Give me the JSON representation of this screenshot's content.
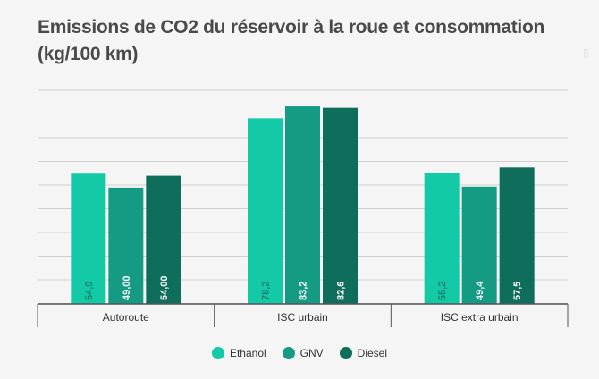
{
  "header": {
    "title_line1": "Emissions de CO2 du réservoir à la roue et consommation",
    "title_line2": "(kg/100 km)"
  },
  "colors": {
    "Ethanol": "#13c9a6",
    "GNV": "#159b84",
    "Diesel": "#0f6e5b",
    "grid": "#cfcfcf",
    "axis": "#555555"
  },
  "chart_data": {
    "type": "bar",
    "title": "Emissions de CO2 du réservoir à la roue et consommation (kg/100 km)",
    "categories": [
      "Autoroute",
      "ISC urbain",
      "ISC extra urbain"
    ],
    "series": [
      {
        "name": "Ethanol",
        "values": [
          54.9,
          78.2,
          55.2
        ],
        "labels": [
          "54,9",
          "78,2",
          "55,2"
        ]
      },
      {
        "name": "GNV",
        "values": [
          49.0,
          83.2,
          49.4
        ],
        "labels": [
          "49,00",
          "83,2",
          "49,4"
        ]
      },
      {
        "name": "Diesel",
        "values": [
          54.0,
          82.6,
          57.5
        ],
        "labels": [
          "54,00",
          "82,6",
          "57,5"
        ]
      }
    ],
    "ylim": [
      0,
      90
    ],
    "grid": true,
    "legend": "bottom-center"
  }
}
